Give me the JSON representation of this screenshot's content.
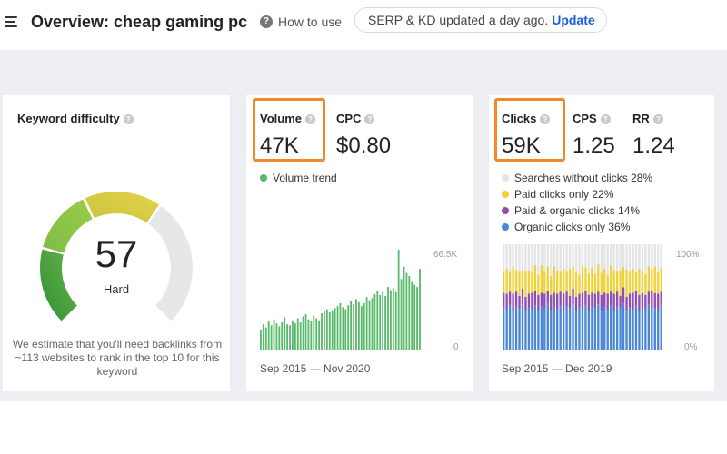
{
  "header": {
    "title": "Overview: cheap gaming pc",
    "how_to_use": "How to use",
    "notice": "SERP & KD updated a day ago.",
    "update_link": "Update"
  },
  "kd_card": {
    "label": "Keyword difficulty",
    "value": "57",
    "rating": "Hard",
    "note": "We estimate that you'll need backlinks from ~113 websites to rank in the top 10 for this keyword",
    "score_fraction": 0.57,
    "colors": [
      "#3c9a3a",
      "#7cbd44",
      "#e0d143",
      "#e6e7e9"
    ]
  },
  "volume_card": {
    "volume_label": "Volume",
    "volume_value": "47K",
    "cpc_label": "CPC",
    "cpc_value": "$0.80",
    "legend_volume_trend": "Volume trend",
    "axis_top": "66.5K",
    "axis_bottom": "0",
    "date_range": "Sep 2015 — Nov 2020",
    "bar_color": "#59b96b"
  },
  "clicks_card": {
    "clicks_label": "Clicks",
    "clicks_value": "59K",
    "cps_label": "CPS",
    "cps_value": "1.25",
    "rr_label": "RR",
    "rr_value": "1.24",
    "legend": [
      {
        "label": "Searches without clicks 28%",
        "color": "#e3e4e6"
      },
      {
        "label": "Paid clicks only 22%",
        "color": "#efd23b"
      },
      {
        "label": "Paid & organic clicks 14%",
        "color": "#8e4fb0"
      },
      {
        "label": "Organic clicks only 36%",
        "color": "#4a87d8"
      }
    ],
    "axis_top": "100%",
    "axis_bottom": "0%",
    "date_range": "Sep 2015 — Dec 2019"
  },
  "chart_data": [
    {
      "type": "bar",
      "title": "",
      "series": [
        {
          "name": "Volume trend",
          "values": [
            20,
            25,
            22,
            28,
            24,
            30,
            26,
            23,
            27,
            32,
            25,
            24,
            29,
            26,
            31,
            27,
            33,
            35,
            30,
            28,
            34,
            31,
            29,
            36,
            38,
            40,
            37,
            39,
            41,
            43,
            46,
            42,
            40,
            44,
            48,
            45,
            50,
            47,
            43,
            46,
            52,
            49,
            51,
            55,
            58,
            54,
            57,
            53,
            62,
            59,
            61,
            57,
            99,
            70,
            82,
            76,
            73,
            67,
            64,
            62,
            80
          ]
        }
      ],
      "ylim": [
        0,
        66500
      ],
      "ylim_labels": [
        "0",
        "66.5K"
      ],
      "x_range": [
        "Sep 2015",
        "Nov 2020"
      ],
      "ylabel": "",
      "xlabel": ""
    },
    {
      "type": "bar",
      "stacked": true,
      "title": "",
      "series": [
        {
          "name": "Organic clicks only",
          "values": [
            40,
            38,
            42,
            37,
            41,
            39,
            43,
            36,
            40,
            38,
            42,
            37,
            41,
            39,
            44,
            36,
            40,
            38,
            42,
            37,
            41,
            39,
            43,
            36,
            40,
            38,
            42,
            37,
            41,
            39,
            43,
            36,
            40,
            38,
            42,
            37,
            41,
            39,
            43,
            36,
            40,
            38,
            42,
            37,
            41,
            39,
            43,
            36,
            40,
            38,
            42
          ]
        },
        {
          "name": "Paid & organic clicks",
          "values": [
            14,
            15,
            13,
            16,
            14,
            12,
            15,
            14,
            13,
            16,
            14,
            15,
            13,
            14,
            12,
            16,
            14,
            15,
            13,
            16,
            14,
            12,
            15,
            14,
            13,
            16,
            14,
            15,
            13,
            14,
            12,
            16,
            14,
            15,
            13,
            16,
            14,
            12,
            15,
            14,
            13,
            16,
            14,
            15,
            13,
            14,
            12,
            16,
            14,
            15,
            13
          ]
        },
        {
          "name": "Paid clicks only",
          "values": [
            20,
            24,
            19,
            26,
            21,
            23,
            18,
            25,
            22,
            20,
            24,
            19,
            26,
            21,
            23,
            18,
            25,
            22,
            20,
            24,
            19,
            26,
            21,
            23,
            18,
            25,
            22,
            20,
            24,
            19,
            26,
            21,
            23,
            18,
            25,
            22,
            20,
            24,
            19,
            26,
            21,
            23,
            18,
            25,
            22,
            20,
            24,
            19,
            26,
            21,
            23
          ]
        },
        {
          "name": "Searches without clicks",
          "values": [
            26,
            23,
            26,
            21,
            24,
            26,
            24,
            25,
            25,
            26,
            20,
            29,
            20,
            26,
            21,
            30,
            21,
            25,
            25,
            23,
            26,
            23,
            21,
            27,
            29,
            21,
            22,
            28,
            22,
            28,
            19,
            27,
            23,
            29,
            20,
            25,
            25,
            25,
            21,
            24,
            26,
            23,
            27,
            23,
            25,
            29,
            21,
            22,
            21,
            26,
            22
          ]
        }
      ],
      "ylim": [
        0,
        100
      ],
      "ylim_labels": [
        "0%",
        "100%"
      ],
      "x_range": [
        "Sep 2015",
        "Dec 2019"
      ],
      "ylabel": "",
      "xlabel": ""
    }
  ]
}
